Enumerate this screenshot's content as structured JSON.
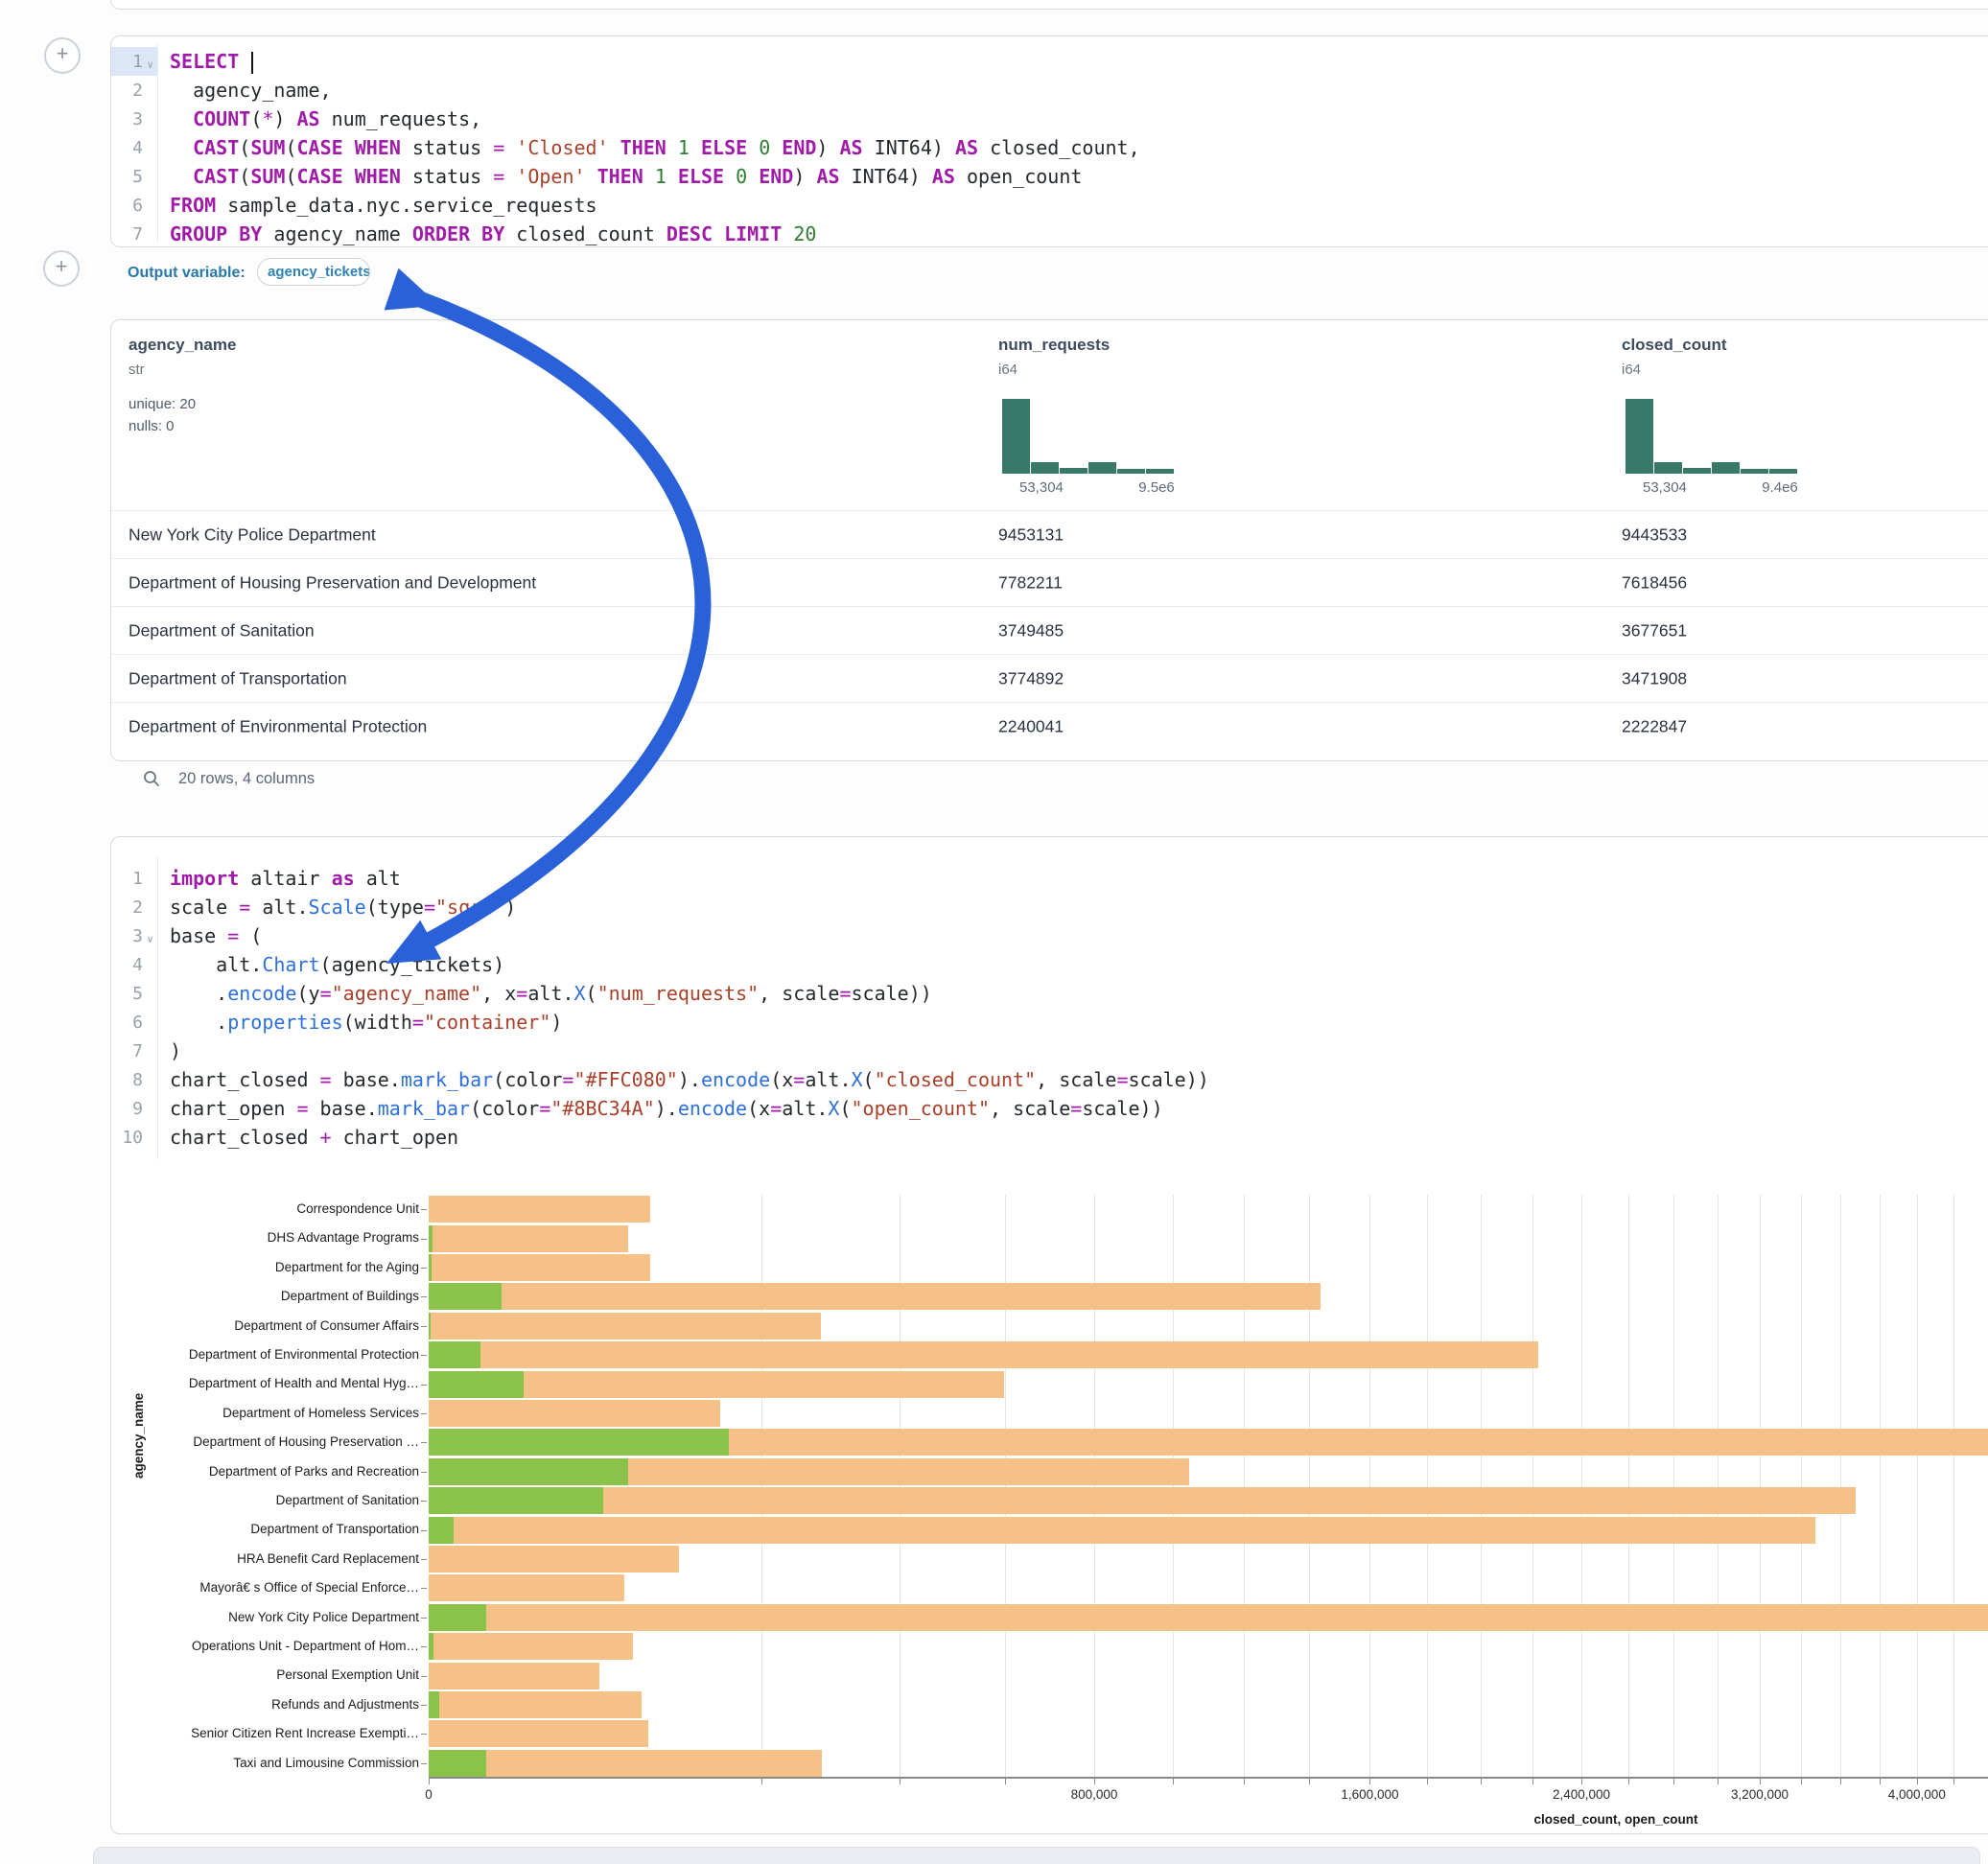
{
  "colors": {
    "bar_closed": "#F6C187",
    "bar_open": "#8BC34A",
    "histogram": "#38796A",
    "arrow_blue": "#2B61D8"
  },
  "add_button_label": "+",
  "sql_cell": {
    "lines": [
      {
        "n": "1",
        "chevron": true,
        "active": true,
        "tokens": [
          [
            "kw",
            "SELECT"
          ],
          [
            "pl",
            " "
          ],
          [
            "caret",
            ""
          ]
        ]
      },
      {
        "n": "2",
        "tokens": [
          [
            "pl",
            "  agency_name,"
          ]
        ]
      },
      {
        "n": "3",
        "tokens": [
          [
            "pl",
            "  "
          ],
          [
            "kw",
            "COUNT"
          ],
          [
            "pl",
            "("
          ],
          [
            "op",
            "*"
          ],
          [
            "pl",
            ") "
          ],
          [
            "kw",
            "AS"
          ],
          [
            "pl",
            " num_requests,"
          ]
        ]
      },
      {
        "n": "4",
        "tokens": [
          [
            "pl",
            "  "
          ],
          [
            "kw",
            "CAST"
          ],
          [
            "pl",
            "("
          ],
          [
            "kw",
            "SUM"
          ],
          [
            "pl",
            "("
          ],
          [
            "kw",
            "CASE"
          ],
          [
            "pl",
            " "
          ],
          [
            "kw",
            "WHEN"
          ],
          [
            "pl",
            " status "
          ],
          [
            "op",
            "="
          ],
          [
            "pl",
            " "
          ],
          [
            "str",
            "'Closed'"
          ],
          [
            "pl",
            " "
          ],
          [
            "kw",
            "THEN"
          ],
          [
            "pl",
            " "
          ],
          [
            "num",
            "1"
          ],
          [
            "pl",
            " "
          ],
          [
            "kw",
            "ELSE"
          ],
          [
            "pl",
            " "
          ],
          [
            "num",
            "0"
          ],
          [
            "pl",
            " "
          ],
          [
            "kw",
            "END"
          ],
          [
            "pl",
            ") "
          ],
          [
            "kw",
            "AS"
          ],
          [
            "pl",
            " INT64) "
          ],
          [
            "kw",
            "AS"
          ],
          [
            "pl",
            " closed_count,"
          ]
        ]
      },
      {
        "n": "5",
        "tokens": [
          [
            "pl",
            "  "
          ],
          [
            "kw",
            "CAST"
          ],
          [
            "pl",
            "("
          ],
          [
            "kw",
            "SUM"
          ],
          [
            "pl",
            "("
          ],
          [
            "kw",
            "CASE"
          ],
          [
            "pl",
            " "
          ],
          [
            "kw",
            "WHEN"
          ],
          [
            "pl",
            " status "
          ],
          [
            "op",
            "="
          ],
          [
            "pl",
            " "
          ],
          [
            "str",
            "'Open'"
          ],
          [
            "pl",
            " "
          ],
          [
            "kw",
            "THEN"
          ],
          [
            "pl",
            " "
          ],
          [
            "num",
            "1"
          ],
          [
            "pl",
            " "
          ],
          [
            "kw",
            "ELSE"
          ],
          [
            "pl",
            " "
          ],
          [
            "num",
            "0"
          ],
          [
            "pl",
            " "
          ],
          [
            "kw",
            "END"
          ],
          [
            "pl",
            ") "
          ],
          [
            "kw",
            "AS"
          ],
          [
            "pl",
            " INT64) "
          ],
          [
            "kw",
            "AS"
          ],
          [
            "pl",
            " open_count"
          ]
        ]
      },
      {
        "n": "6",
        "tokens": [
          [
            "kw",
            "FROM"
          ],
          [
            "pl",
            " sample_data.nyc.service_requests"
          ]
        ]
      },
      {
        "n": "7",
        "tokens": [
          [
            "kw",
            "GROUP"
          ],
          [
            "pl",
            " "
          ],
          [
            "kw",
            "BY"
          ],
          [
            "pl",
            " agency_name "
          ],
          [
            "kw",
            "ORDER"
          ],
          [
            "pl",
            " "
          ],
          [
            "kw",
            "BY"
          ],
          [
            "pl",
            " closed_count "
          ],
          [
            "kw",
            "DESC"
          ],
          [
            "pl",
            " "
          ],
          [
            "kw",
            "LIMIT"
          ],
          [
            "pl",
            " "
          ],
          [
            "num",
            "20"
          ]
        ]
      }
    ]
  },
  "output_variable": {
    "label": "Output variable:",
    "value": "agency_tickets"
  },
  "table": {
    "columns": [
      {
        "name": "agency_name",
        "type": "str",
        "stats": [
          "unique: 20",
          "nulls: 0"
        ]
      },
      {
        "name": "num_requests",
        "type": "i64",
        "hist": {
          "min": "53,304",
          "max": "9.5e6",
          "bars": [
            100,
            16,
            8,
            15,
            7,
            6
          ]
        }
      },
      {
        "name": "closed_count",
        "type": "i64",
        "hist": {
          "min": "53,304",
          "max": "9.4e6",
          "bars": [
            100,
            16,
            8,
            16,
            7,
            6
          ]
        }
      }
    ],
    "rows": [
      [
        "New York City Police Department",
        "9453131",
        "9443533"
      ],
      [
        "Department of Housing Preservation and Development",
        "7782211",
        "7618456"
      ],
      [
        "Department of Sanitation",
        "3749485",
        "3677651"
      ],
      [
        "Department of Transportation",
        "3774892",
        "3471908"
      ],
      [
        "Department of Environmental Protection",
        "2240041",
        "2222847"
      ]
    ],
    "footer": "20 rows, 4 columns"
  },
  "python_cell": {
    "lines": [
      {
        "n": "1",
        "tokens": [
          [
            "kw",
            "import"
          ],
          [
            "pl",
            " altair "
          ],
          [
            "kw",
            "as"
          ],
          [
            "pl",
            " alt"
          ]
        ]
      },
      {
        "n": "2",
        "tokens": [
          [
            "pl",
            "scale "
          ],
          [
            "op",
            "="
          ],
          [
            "pl",
            " alt."
          ],
          [
            "fn",
            "Scale"
          ],
          [
            "pl",
            "(type"
          ],
          [
            "op",
            "="
          ],
          [
            "str",
            "\"sqrt\""
          ],
          [
            "pl",
            ")"
          ]
        ]
      },
      {
        "n": "3",
        "chevron": true,
        "tokens": [
          [
            "pl",
            "base "
          ],
          [
            "op",
            "="
          ],
          [
            "pl",
            " ("
          ]
        ]
      },
      {
        "n": "4",
        "tokens": [
          [
            "pl",
            "    alt."
          ],
          [
            "fn",
            "Chart"
          ],
          [
            "pl",
            "(agency_tickets)"
          ]
        ]
      },
      {
        "n": "5",
        "tokens": [
          [
            "pl",
            "    ."
          ],
          [
            "fn",
            "encode"
          ],
          [
            "pl",
            "(y"
          ],
          [
            "op",
            "="
          ],
          [
            "str",
            "\"agency_name\""
          ],
          [
            "pl",
            ", x"
          ],
          [
            "op",
            "="
          ],
          [
            "pl",
            "alt."
          ],
          [
            "fn",
            "X"
          ],
          [
            "pl",
            "("
          ],
          [
            "str",
            "\"num_requests\""
          ],
          [
            "pl",
            ", scale"
          ],
          [
            "op",
            "="
          ],
          [
            "pl",
            "scale))"
          ]
        ]
      },
      {
        "n": "6",
        "tokens": [
          [
            "pl",
            "    ."
          ],
          [
            "fn",
            "properties"
          ],
          [
            "pl",
            "(width"
          ],
          [
            "op",
            "="
          ],
          [
            "str",
            "\"container\""
          ],
          [
            "pl",
            ")"
          ]
        ]
      },
      {
        "n": "7",
        "tokens": [
          [
            "pl",
            ")"
          ]
        ]
      },
      {
        "n": "8",
        "tokens": [
          [
            "pl",
            "chart_closed "
          ],
          [
            "op",
            "="
          ],
          [
            "pl",
            " base."
          ],
          [
            "fn",
            "mark_bar"
          ],
          [
            "pl",
            "(color"
          ],
          [
            "op",
            "="
          ],
          [
            "str",
            "\"#FFC080\""
          ],
          [
            "pl",
            ")."
          ],
          [
            "fn",
            "encode"
          ],
          [
            "pl",
            "(x"
          ],
          [
            "op",
            "="
          ],
          [
            "pl",
            "alt."
          ],
          [
            "fn",
            "X"
          ],
          [
            "pl",
            "("
          ],
          [
            "str",
            "\"closed_count\""
          ],
          [
            "pl",
            ", scale"
          ],
          [
            "op",
            "="
          ],
          [
            "pl",
            "scale))"
          ]
        ]
      },
      {
        "n": "9",
        "tokens": [
          [
            "pl",
            "chart_open "
          ],
          [
            "op",
            "="
          ],
          [
            "pl",
            " base."
          ],
          [
            "fn",
            "mark_bar"
          ],
          [
            "pl",
            "(color"
          ],
          [
            "op",
            "="
          ],
          [
            "str",
            "\"#8BC34A\""
          ],
          [
            "pl",
            ")."
          ],
          [
            "fn",
            "encode"
          ],
          [
            "pl",
            "(x"
          ],
          [
            "op",
            "="
          ],
          [
            "pl",
            "alt."
          ],
          [
            "fn",
            "X"
          ],
          [
            "pl",
            "("
          ],
          [
            "str",
            "\"open_count\""
          ],
          [
            "pl",
            ", scale"
          ],
          [
            "op",
            "="
          ],
          [
            "pl",
            "scale))"
          ]
        ]
      },
      {
        "n": "10",
        "tokens": [
          [
            "pl",
            "chart_closed "
          ],
          [
            "op",
            "+"
          ],
          [
            "pl",
            " chart_open"
          ]
        ]
      }
    ]
  },
  "chart_data": {
    "type": "bar",
    "orientation": "horizontal",
    "x_scale": "sqrt",
    "xlabel": "closed_count, open_count",
    "ylabel": "agency_name",
    "grid": true,
    "grid_step": 200000,
    "grid_max": 4400000,
    "x_ticks": [
      {
        "v": 0,
        "label": "0"
      },
      {
        "v": 800000,
        "label": "800,000"
      },
      {
        "v": 1600000,
        "label": "1,600,000"
      },
      {
        "v": 2400000,
        "label": "2,400,000"
      },
      {
        "v": 3200000,
        "label": "3,200,000"
      },
      {
        "v": 4000000,
        "label": "4,000,000"
      }
    ],
    "categories": [
      "Correspondence Unit",
      "DHS Advantage Programs",
      "Department for the Aging",
      "Department of Buildings",
      "Department of Consumer Affairs",
      "Department of Environmental Protection",
      "Department of Health and Mental Hyg…",
      "Department of Homeless Services",
      "Department of Housing Preservation …",
      "Department of Parks and Recreation",
      "Department of Sanitation",
      "Department of Transportation",
      "HRA Benefit Card Replacement",
      "Mayorâ€ s Office of Special Enforce…",
      "New York City Police Department",
      "Operations Unit - Department of Hom…",
      "Personal Exemption Unit",
      "Refunds and Adjustments",
      "Senior Citizen Rent Increase Exempti…",
      "Taxi and Limousine Commission"
    ],
    "series": [
      {
        "name": "closed_count",
        "color": "#F6C187",
        "values": [
          89000,
          72000,
          88500,
          1436000,
          278000,
          2222847,
          598000,
          154000,
          7618456,
          1044000,
          3677651,
          3471908,
          113000,
          69000,
          9443533,
          75300,
          52600,
          81800,
          87100,
          279000
        ]
      },
      {
        "name": "open_count",
        "color": "#8BC34A",
        "values": [
          0,
          30,
          15,
          9600,
          10,
          4800,
          16300,
          0,
          162700,
          71900,
          55000,
          1100,
          0,
          0,
          6000,
          40,
          0,
          200,
          0,
          6000
        ]
      }
    ]
  }
}
